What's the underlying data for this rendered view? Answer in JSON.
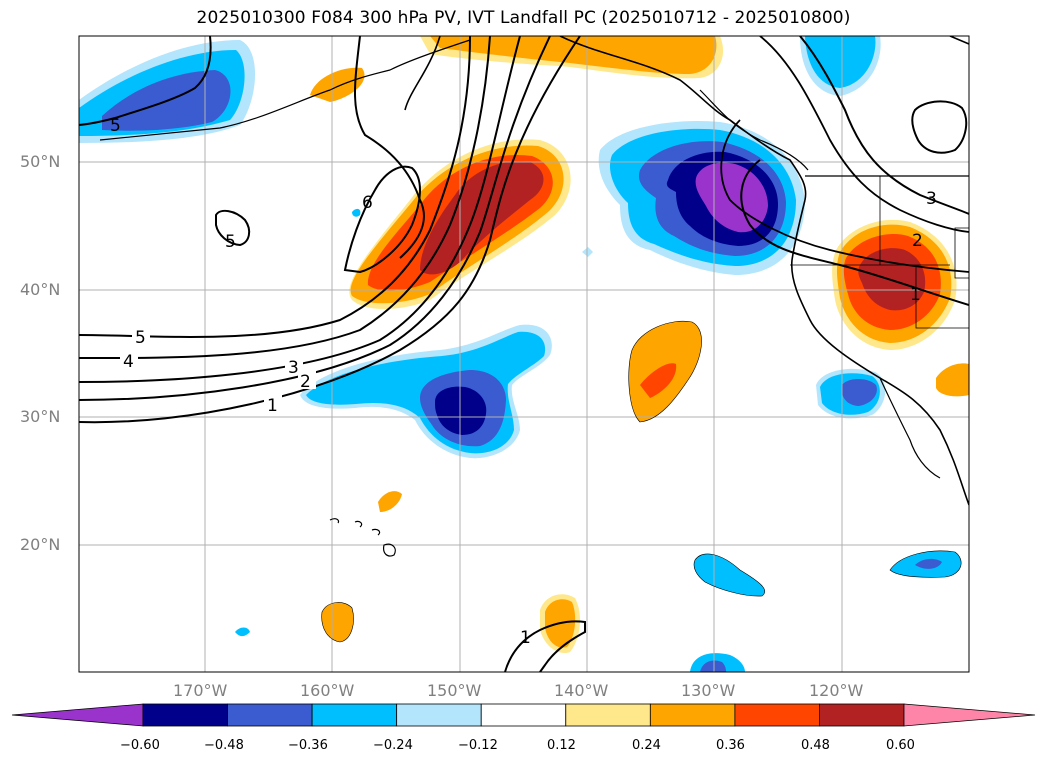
{
  "title": "2025010300 F084 300 hPa PV, IVT Landfall PC (2025010712 - 2025010800)",
  "latitude_labels": [
    "50°N",
    "40°N",
    "30°N",
    "20°N"
  ],
  "longitude_labels": [
    "170°W",
    "160°W",
    "150°W",
    "140°W",
    "130°W",
    "120°W"
  ],
  "colorbar": {
    "tick_labels": [
      "−0.60",
      "−0.48",
      "−0.36",
      "−0.24",
      "−0.12",
      "0.12",
      "0.24",
      "0.36",
      "0.48",
      "0.60"
    ],
    "colors": [
      "#9933cc",
      "#00008b",
      "#3b5bd0",
      "#00bfff",
      "#b3e5fc",
      "#ffffff",
      "#ffe88c",
      "#ffa500",
      "#ff4500",
      "#b22222",
      "#ff85a8"
    ]
  },
  "contour_labels": [
    "5",
    "4",
    "3",
    "2",
    "1",
    "5",
    "6",
    "5",
    "1",
    "2",
    "3",
    "1"
  ]
}
